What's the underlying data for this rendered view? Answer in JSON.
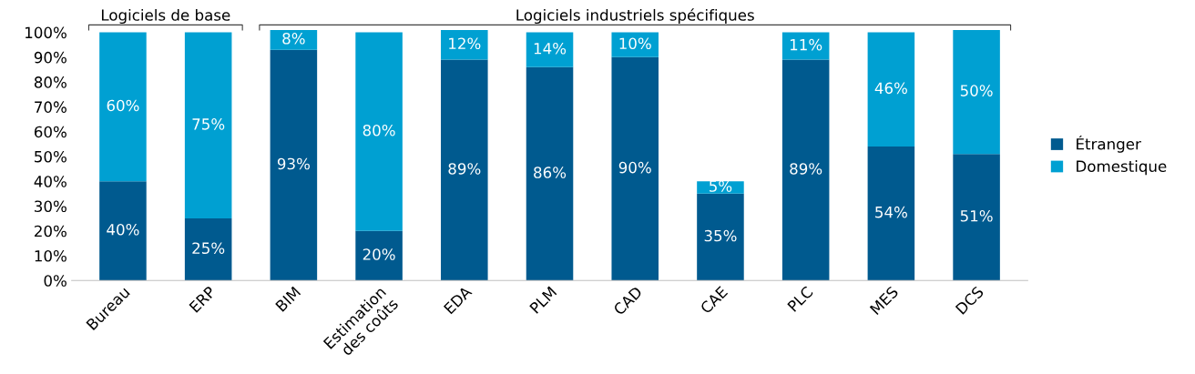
{
  "chart_data": {
    "type": "bar",
    "stacked": true,
    "categories": [
      "Bureau",
      "ERP",
      "BIM",
      "Estimation\ndes coûts",
      "EDA",
      "PLM",
      "CAD",
      "CAE",
      "PLC",
      "MES",
      "DCS"
    ],
    "series": [
      {
        "name": "Étranger",
        "color": "#005a8f",
        "values": [
          40,
          25,
          93,
          20,
          89,
          86,
          90,
          35,
          89,
          54,
          51
        ],
        "value_labels": [
          "40%",
          "25%",
          "93%",
          "20%",
          "89%",
          "86%",
          "90%",
          "35%",
          "89%",
          "54%",
          "51%"
        ]
      },
      {
        "name": "Domestique",
        "color": "#00a0d2",
        "values": [
          60,
          75,
          8,
          80,
          12,
          14,
          10,
          5,
          11,
          46,
          50
        ],
        "value_labels": [
          "60%",
          "75%",
          "8%",
          "80%",
          "12%",
          "14%",
          "10%",
          "5%",
          "11%",
          "46%",
          "50%"
        ]
      }
    ],
    "ylim": [
      0,
      101
    ],
    "yticks": [
      {
        "value": 0,
        "label": "0%"
      },
      {
        "value": 10,
        "label": "10%"
      },
      {
        "value": 20,
        "label": "20%"
      },
      {
        "value": 30,
        "label": "30%"
      },
      {
        "value": 40,
        "label": "40%"
      },
      {
        "value": 50,
        "label": "50%"
      },
      {
        "value": 60,
        "label": "60%"
      },
      {
        "value": 70,
        "label": "70%"
      },
      {
        "value": 80,
        "label": "80%"
      },
      {
        "value": 90,
        "label": "90%"
      },
      {
        "value": 100,
        "label": "100%"
      }
    ],
    "annotations": [
      "Logiciels de base",
      "Logiciels industriels spécifiques"
    ],
    "legend": "right",
    "grid": false
  }
}
